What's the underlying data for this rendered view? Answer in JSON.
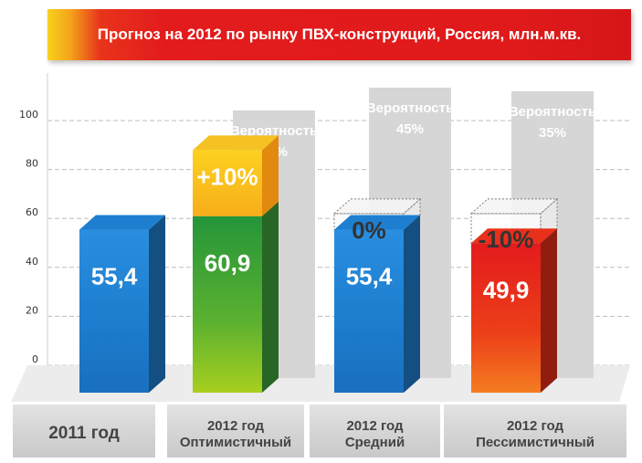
{
  "title": "Прогноз на 2012 по рынку ПВХ-конструкций, Россия, млн.м.кв.",
  "colors": {
    "blue": "#1e7fd0",
    "green": "#3fa43a",
    "orange_red": "#e9301a",
    "yellow": "#fbc81d",
    "probability_bar": "#d6d6d6"
  },
  "chart_data": {
    "type": "bar",
    "yticks": [
      0,
      20,
      40,
      60,
      80,
      100
    ],
    "ylim": [
      0,
      100
    ],
    "grid": true,
    "categories": [
      [
        "2011 год"
      ],
      [
        "2012 год",
        "Оптимистичный"
      ],
      [
        "2012 год",
        "Средний"
      ],
      [
        "2012 год",
        "Пессимистичный"
      ]
    ],
    "values": [
      55.4,
      60.9,
      55.4,
      49.9
    ],
    "value_labels": [
      "55,4",
      "60,9",
      "55,4",
      "49,9"
    ],
    "bar_colors": [
      "blue",
      "green",
      "blue",
      "orange_red"
    ],
    "changes": [
      {
        "index": 1,
        "label": "+10%"
      },
      {
        "index": 2,
        "label": "0%"
      },
      {
        "index": 3,
        "label": "-10%"
      }
    ],
    "probabilities": [
      {
        "index": 1,
        "label": "Вероятность",
        "value": "20%"
      },
      {
        "index": 2,
        "label": "Вероятность",
        "value": "45%"
      },
      {
        "index": 3,
        "label": "Вероятность",
        "value": "35%"
      }
    ]
  }
}
